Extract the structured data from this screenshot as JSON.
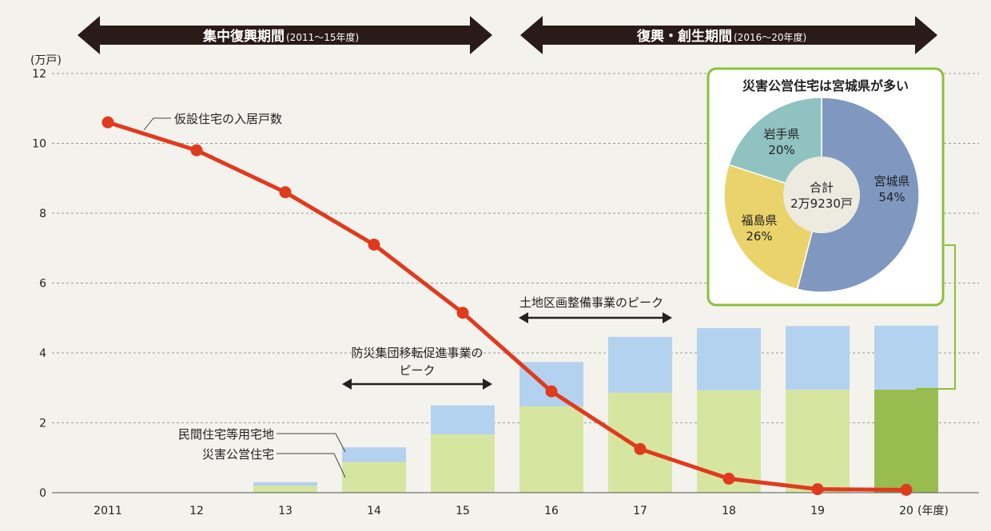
{
  "periods": [
    {
      "label": "集中復興期間",
      "sub": "(2011〜15年度)"
    },
    {
      "label": "復興・創生期間",
      "sub": "(2016〜20年度)"
    }
  ],
  "annotations": {
    "line_label": "仮設住宅の入居戸数",
    "bosai_peak": [
      "防災集団移転促進事業の",
      "ピーク"
    ],
    "tochi_peak": "土地区画整備事業のピーク",
    "private_land": "民間住宅等用宅地",
    "public_housing": "災害公営住宅"
  },
  "inset": {
    "title": "災害公営住宅は宮城県が多い",
    "center": [
      "合計",
      "2万9230戸"
    ]
  },
  "chart_data": [
    {
      "type": "bar",
      "ylabel": "(万戸)",
      "xlabel_unit": "(年度)",
      "ylim": [
        0,
        12
      ],
      "yticks": [
        0,
        2,
        4,
        6,
        8,
        10,
        12
      ],
      "grid": true,
      "categories": [
        "2011",
        "12",
        "13",
        "14",
        "15",
        "16",
        "17",
        "18",
        "19",
        "20"
      ],
      "series": [
        {
          "name": "災害公営住宅",
          "type": "stacked-bar",
          "color": "#d6e6a0",
          "highlight_color": "#98bc50",
          "values": [
            0,
            0,
            0.2,
            0.88,
            1.67,
            2.47,
            2.86,
            2.93,
            2.95,
            2.95
          ]
        },
        {
          "name": "民間住宅等用宅地",
          "type": "stacked-bar",
          "color": "#b3d2ef",
          "values": [
            0,
            0,
            0.1,
            0.42,
            0.83,
            1.27,
            1.6,
            1.78,
            1.82,
            1.83
          ]
        },
        {
          "name": "仮設住宅の入居戸数",
          "type": "line",
          "color": "#e03a1e",
          "values": [
            10.6,
            9.8,
            8.6,
            7.1,
            5.15,
            2.9,
            1.25,
            0.4,
            0.1,
            0.08
          ]
        }
      ]
    },
    {
      "type": "pie",
      "donut": true,
      "slices": [
        {
          "label": "宮城県",
          "value": 54,
          "display": "54%",
          "color": "#8098c0"
        },
        {
          "label": "福島県",
          "value": 26,
          "display": "26%",
          "color": "#ead36a"
        },
        {
          "label": "岩手県",
          "value": 20,
          "display": "20%",
          "color": "#8fc2c0"
        }
      ]
    }
  ]
}
